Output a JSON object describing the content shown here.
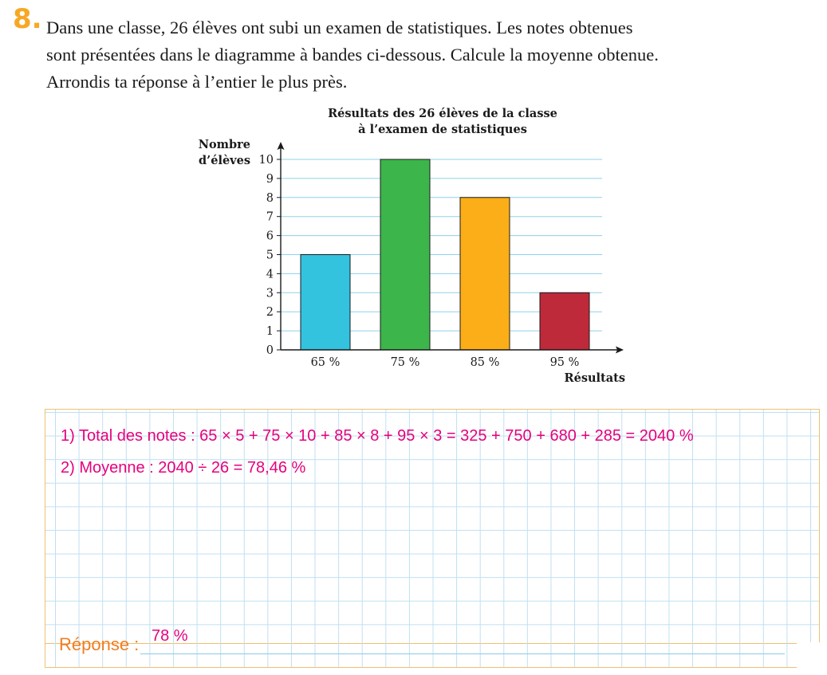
{
  "question": {
    "number": "8.",
    "lines": [
      "Dans une classe, 26 élèves ont subi un examen de statistiques. Les notes obtenues",
      "sont présentées dans le diagramme à bandes ci-dessous. Calcule la moyenne obtenue.",
      "Arrondis ta réponse à l’entier le plus près."
    ]
  },
  "chart_data": {
    "type": "bar",
    "title_lines": [
      "Résultats des 26 élèves de la classe",
      "à l’examen de statistiques"
    ],
    "ylabel_lines": [
      "Nombre",
      "d’élèves"
    ],
    "xlabel": "Résultats",
    "categories": [
      "65 %",
      "75 %",
      "85 %",
      "95 %"
    ],
    "values": [
      5,
      10,
      8,
      3
    ],
    "colors": [
      "#33c3df",
      "#3cb54a",
      "#fbae17",
      "#be2a3a"
    ],
    "ylim": [
      0,
      10
    ],
    "yticks": [
      0,
      1,
      2,
      3,
      4,
      5,
      6,
      7,
      8,
      9,
      10
    ],
    "grid": true,
    "gridColor": "#8fd0ea"
  },
  "answer": {
    "line1": "1)  Total des notes : 65 × 5 + 75 × 10 + 85 × 8 + 95 × 3 = 325 + 750 + 680 + 285 = 2040 %",
    "line2": "2)  Moyenne : 2040 ÷ 26 = 78,46 %",
    "label": "Réponse :",
    "value": "78 %"
  }
}
